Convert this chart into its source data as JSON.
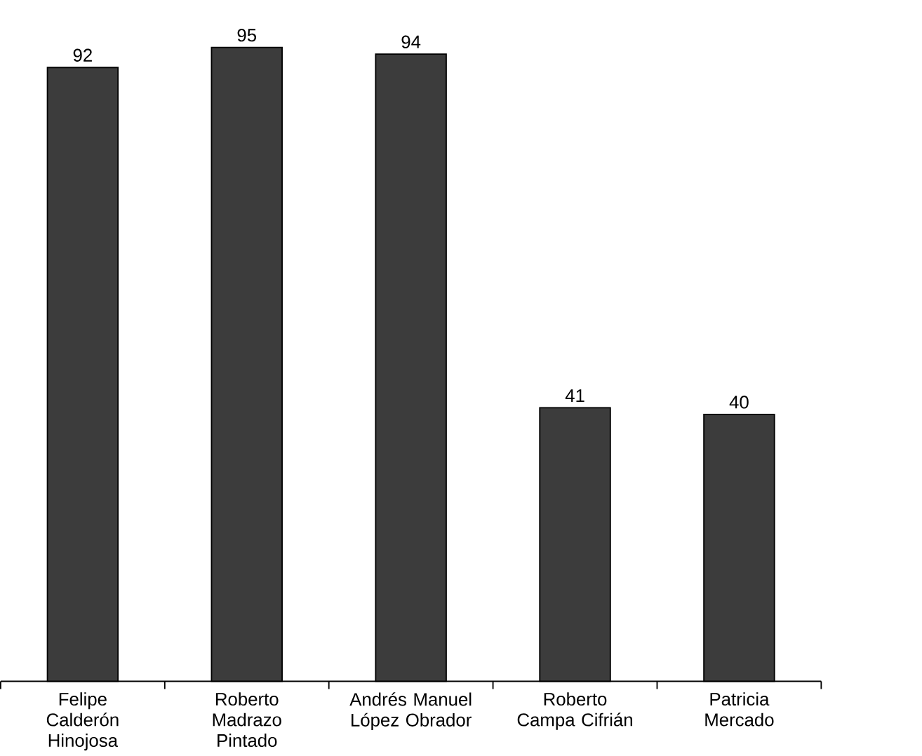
{
  "chart_data": {
    "type": "bar",
    "categories": [
      "Felipe Calderón Hinojosa",
      "Roberto Madrazo Pintado",
      "Andrés Manuel López Obrador",
      "Roberto Campa Cifrián",
      "Patricia Mercado"
    ],
    "values": [
      92,
      95,
      94,
      41,
      40
    ],
    "color": "#3c3c3c",
    "data_labels": true
  }
}
